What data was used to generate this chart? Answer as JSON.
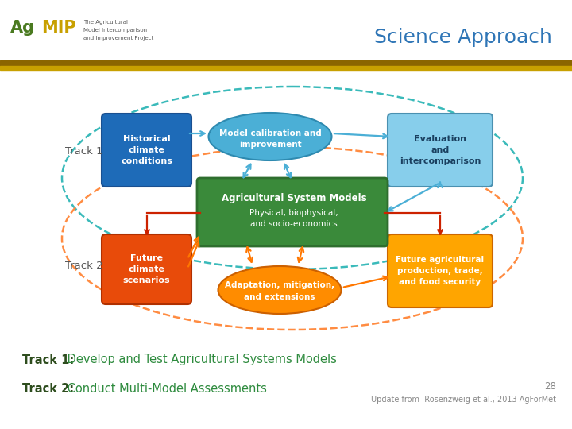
{
  "title": "Science Approach",
  "title_color": "#2E75B6",
  "title_fontsize": 18,
  "background_color": "#ffffff",
  "header_bar_color1": "#8B6500",
  "header_bar_color2": "#C8A000",
  "track1_label": "Track 1",
  "track2_label": "Track 2",
  "track_label_color": "#555555",
  "bottom_text1_bold": "Track 1:",
  "bottom_text1_rest": " Develop and Test Agricultural Systems Models",
  "bottom_text2_bold": "Track 2:",
  "bottom_text2_rest": " Conduct Multi-Model Assessments",
  "bottom_bold_color": "#2E4D1E",
  "bottom_rest_color": "#2E8B3E",
  "page_num": "28",
  "citation": "Update from  Rosenzweig et al., 2013 AgForMet",
  "citation_color": "#888888",
  "ellipse_t1_edge": "#3ABABA",
  "ellipse_t2_edge": "#FF8C42",
  "center_box_color": "#3A8A3A",
  "center_box_edge": "#2E6E2E",
  "hist_color": "#1E6BB8",
  "fut_clim_color": "#E84B0A",
  "calib_color": "#4BAFD6",
  "calib_edge": "#2E8AB0",
  "adapt_color": "#FF8C00",
  "adapt_edge": "#CC6000",
  "eval_color": "#87CEEB",
  "eval_edge": "#4A90B0",
  "fut_ag_color": "#FFA500",
  "fut_ag_edge": "#CC6600",
  "arrow_blue": "#4BAFD6",
  "arrow_orange": "#FF7700",
  "arrow_red": "#CC2200",
  "agmip_green": "#4A7A20",
  "agmip_yellow": "#C8A000"
}
